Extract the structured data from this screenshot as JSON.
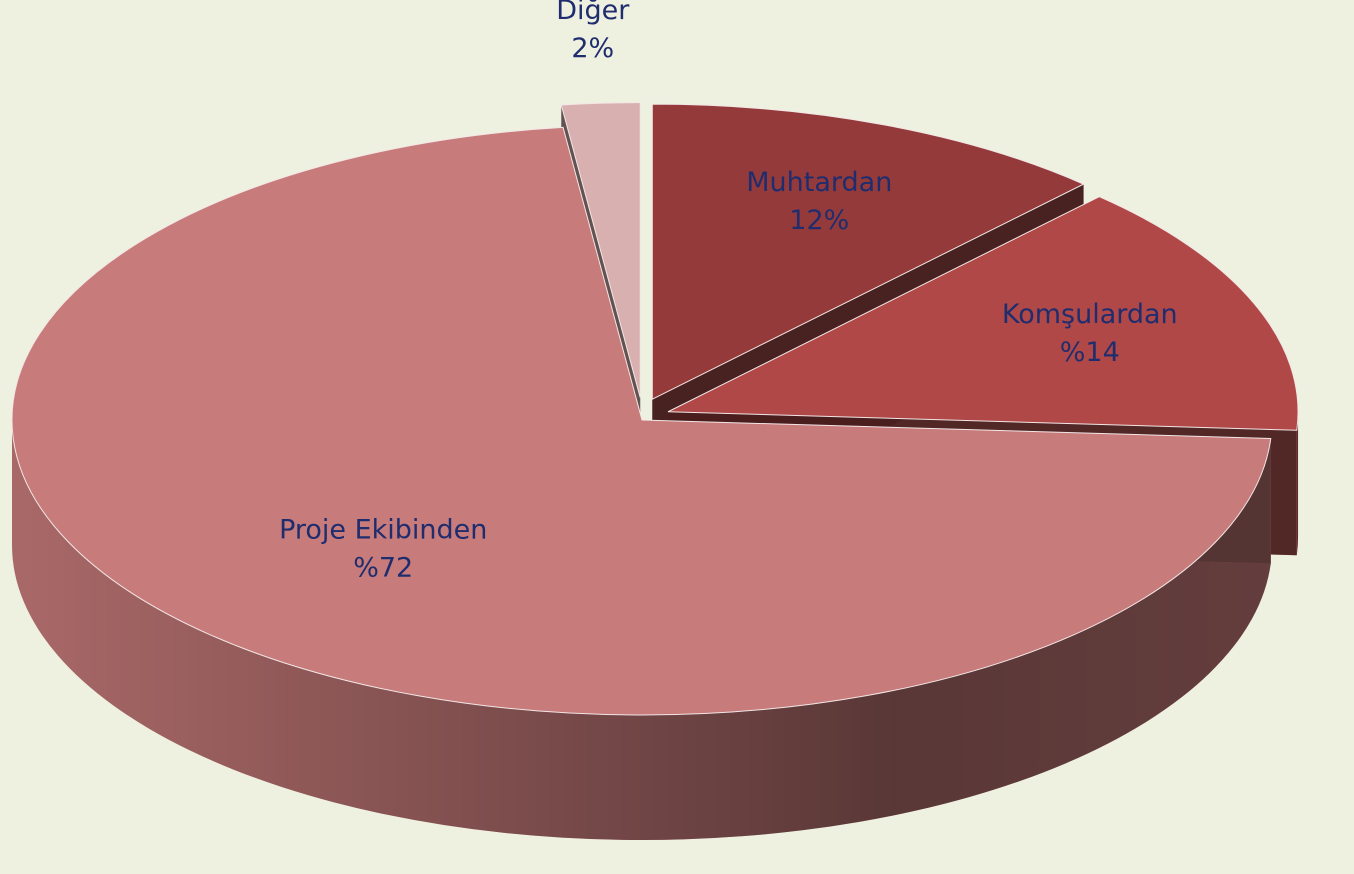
{
  "chart_data": {
    "type": "pie",
    "categories": [
      "Muhtardan",
      "Komşulardan",
      "Proje Ekibinden",
      "Diğer"
    ],
    "values": [
      12,
      14,
      72,
      2
    ],
    "value_labels": [
      "12%",
      "%14",
      "%72",
      "2%"
    ],
    "colors": [
      "#943a3a",
      "#b04848",
      "#c77b7a",
      "#d9b0b0"
    ]
  }
}
